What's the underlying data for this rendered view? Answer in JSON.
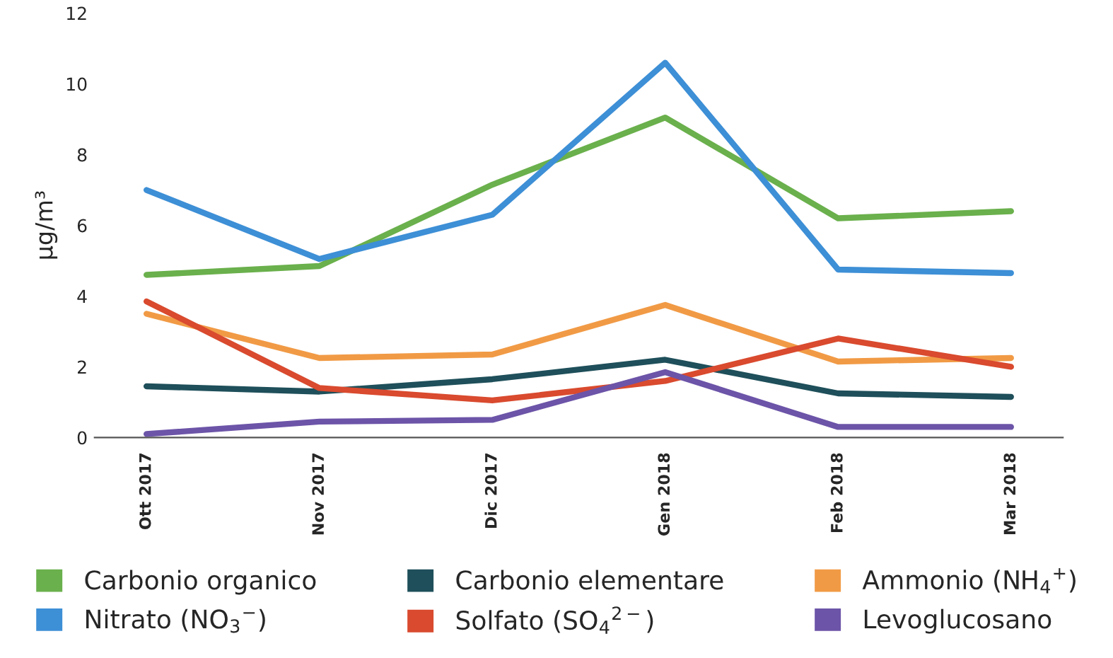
{
  "chart_data": {
    "type": "line",
    "ylabel": "µg/m³",
    "categories": [
      "Ott 2017",
      "Nov 2017",
      "Dic 2017",
      "Gen 2018",
      "Feb 2018",
      "Mar 2018"
    ],
    "series": [
      {
        "name": "Carbonio organico",
        "color": "#6ab04c",
        "values": [
          4.6,
          4.85,
          7.15,
          9.05,
          6.2,
          6.4
        ]
      },
      {
        "name": "Carbonio elementare",
        "color": "#1e4f5a",
        "values": [
          1.45,
          1.3,
          1.65,
          2.2,
          1.25,
          1.15
        ]
      },
      {
        "name": "Ammonio (NH$_{4}$$^{+}$)",
        "color": "#f19a45",
        "values": [
          3.5,
          2.25,
          2.35,
          3.75,
          2.15,
          2.25
        ]
      },
      {
        "name": "Nitrato (NO$_{3}$$^{−}$)",
        "color": "#3d8fd6",
        "values": [
          7.0,
          5.05,
          6.3,
          10.6,
          4.75,
          4.65
        ]
      },
      {
        "name": "Solfato (SO$_{4}$$^{2−}$)",
        "color": "#d94a2e",
        "values": [
          3.85,
          1.4,
          1.05,
          1.6,
          2.8,
          2.0
        ]
      },
      {
        "name": "Levoglucosano",
        "color": "#6c54a8",
        "values": [
          0.1,
          0.45,
          0.5,
          1.85,
          0.3,
          0.3
        ]
      }
    ],
    "ylim": [
      0,
      12
    ],
    "yticks": [
      0,
      2,
      4,
      6,
      8,
      10,
      12
    ],
    "grid": false,
    "legend": "bottom",
    "marker": "none",
    "line_style": "solid"
  }
}
